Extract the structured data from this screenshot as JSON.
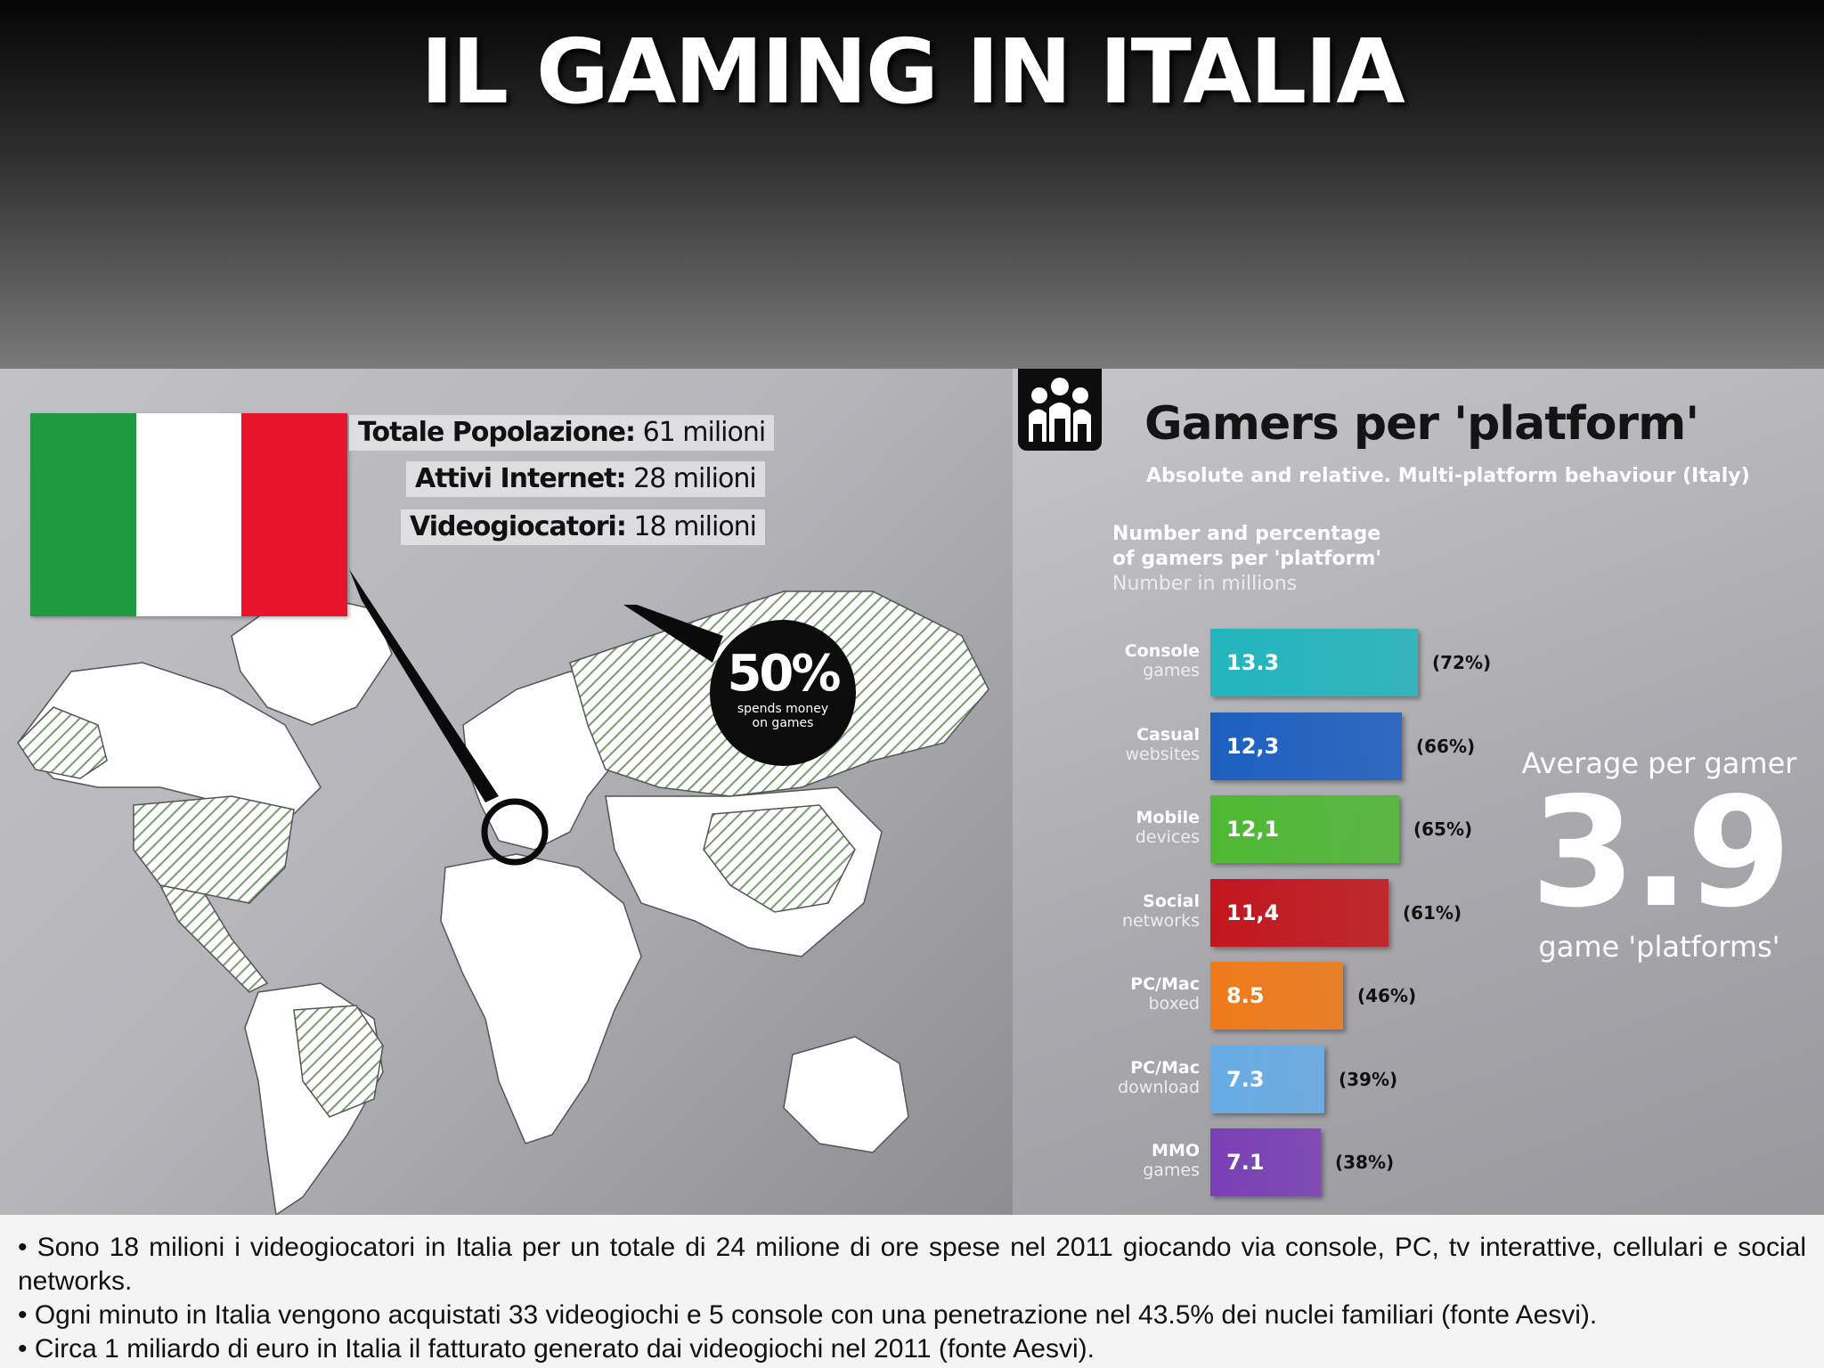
{
  "slide": {
    "title": "IL GAMING IN ITALIA"
  },
  "map_panel": {
    "flag_colors": [
      "#1f9a3e",
      "#ffffff",
      "#e8142c"
    ],
    "stats": [
      {
        "label": "Totale Popolazione:",
        "value": "61 milioni"
      },
      {
        "label": "Attivi Internet:",
        "value": "28 milioni"
      },
      {
        "label": "Videogiocatori:",
        "value": "18 milioni"
      }
    ],
    "badge": {
      "value": "50%",
      "caption": "spends money on games"
    }
  },
  "chart_panel": {
    "icon": "people-icon",
    "subtitle": "Absolute and relative. Multi-platform behaviour (Italy)",
    "description": {
      "line1": "Number and percentage",
      "line2": "of gamers per 'platform'",
      "line3": "Number in millions"
    },
    "average": {
      "label": "Average per gamer",
      "value": "3.9",
      "unit": "game 'platforms'"
    }
  },
  "chart_data": {
    "type": "bar",
    "orientation": "horizontal",
    "title": "Gamers per 'platform'",
    "categories": [
      {
        "line1": "Console",
        "line2": "games"
      },
      {
        "line1": "Casual",
        "line2": "websites"
      },
      {
        "line1": "Mobile",
        "line2": "devices"
      },
      {
        "line1": "Social",
        "line2": "networks"
      },
      {
        "line1": "PC/Mac",
        "line2": "boxed"
      },
      {
        "line1": "PC/Mac",
        "line2": "download"
      },
      {
        "line1": "MMO",
        "line2": "games"
      }
    ],
    "values": [
      13.3,
      12.3,
      12.1,
      11.4,
      8.5,
      7.3,
      7.1
    ],
    "value_labels": [
      "13.3",
      "12,3",
      "12,1",
      "11,4",
      "8.5",
      "7.3",
      "7.1"
    ],
    "percent_labels": [
      "(72%)",
      "(66%)",
      "(65%)",
      "(61%)",
      "(46%)",
      "(39%)",
      "(38%)"
    ],
    "colors": [
      "#22b5bd",
      "#1d5fc0",
      "#4fb833",
      "#c2161d",
      "#f07a18",
      "#67ace6",
      "#7a3fb5"
    ],
    "legend": "none",
    "grid": false
  },
  "notes": [
    "• Sono 18 milioni i videogiocatori in Italia per un totale di 24 milione di ore spese nel 2011 giocando via console, PC, tv interattive, cellulari e social networks.",
    "• Ogni minuto in Italia vengono acquistati 33 videogiochi e 5 console  con una penetrazione nel 43.5% dei nuclei familiari (fonte Aesvi).",
    "• Circa 1 miliardo di euro in Italia il fatturato generato dai videogiochi nel 2011 (fonte Aesvi)."
  ]
}
